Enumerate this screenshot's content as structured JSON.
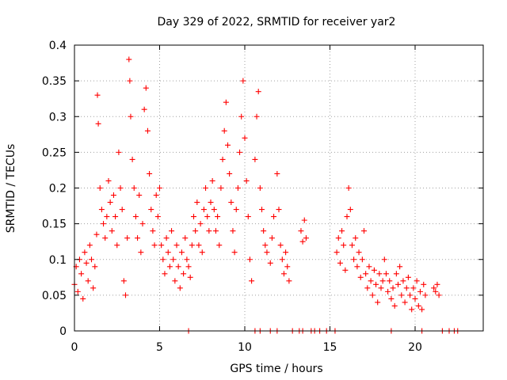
{
  "chart_data": {
    "type": "scatter",
    "title": "Day 329 of 2022, SRMTID for receiver yar2",
    "xlabel": "GPS time / hours",
    "ylabel": "SRMTID / TECUs",
    "xlim": [
      0,
      24
    ],
    "ylim": [
      0,
      0.4
    ],
    "x_ticks": [
      0,
      5,
      10,
      15,
      20
    ],
    "x_tick_labels": [
      "0",
      "5",
      "10",
      "15",
      "20"
    ],
    "y_ticks": [
      0,
      0.05,
      0.1,
      0.15,
      0.2,
      0.25,
      0.3,
      0.35,
      0.4
    ],
    "y_tick_labels": [
      "0",
      "0.05",
      "0.1",
      "0.15",
      "0.2",
      "0.25",
      "0.3",
      "0.35",
      "0.4"
    ],
    "grid": true,
    "marker": "+",
    "color": "#ff0000",
    "series": [
      {
        "name": "SRMTID",
        "points": [
          [
            0.0,
            0.065
          ],
          [
            0.1,
            0.09
          ],
          [
            0.2,
            0.055
          ],
          [
            0.3,
            0.1
          ],
          [
            0.4,
            0.08
          ],
          [
            0.5,
            0.045
          ],
          [
            0.6,
            0.11
          ],
          [
            0.7,
            0.095
          ],
          [
            0.8,
            0.07
          ],
          [
            0.9,
            0.12
          ],
          [
            1.0,
            0.1
          ],
          [
            1.1,
            0.06
          ],
          [
            1.2,
            0.09
          ],
          [
            1.3,
            0.135
          ],
          [
            1.35,
            0.33
          ],
          [
            1.4,
            0.29
          ],
          [
            1.5,
            0.2
          ],
          [
            1.6,
            0.17
          ],
          [
            1.7,
            0.15
          ],
          [
            1.8,
            0.13
          ],
          [
            1.9,
            0.16
          ],
          [
            2.0,
            0.21
          ],
          [
            2.1,
            0.18
          ],
          [
            2.2,
            0.14
          ],
          [
            2.3,
            0.19
          ],
          [
            2.4,
            0.16
          ],
          [
            2.5,
            0.12
          ],
          [
            2.6,
            0.25
          ],
          [
            2.7,
            0.2
          ],
          [
            2.8,
            0.17
          ],
          [
            2.9,
            0.07
          ],
          [
            3.0,
            0.05
          ],
          [
            3.1,
            0.13
          ],
          [
            3.2,
            0.38
          ],
          [
            3.25,
            0.35
          ],
          [
            3.3,
            0.3
          ],
          [
            3.4,
            0.24
          ],
          [
            3.5,
            0.2
          ],
          [
            3.6,
            0.16
          ],
          [
            3.7,
            0.13
          ],
          [
            3.8,
            0.19
          ],
          [
            3.9,
            0.11
          ],
          [
            4.0,
            0.15
          ],
          [
            4.1,
            0.31
          ],
          [
            4.2,
            0.34
          ],
          [
            4.3,
            0.28
          ],
          [
            4.4,
            0.22
          ],
          [
            4.5,
            0.17
          ],
          [
            4.6,
            0.14
          ],
          [
            4.7,
            0.12
          ],
          [
            4.8,
            0.19
          ],
          [
            4.9,
            0.16
          ],
          [
            5.0,
            0.2
          ],
          [
            5.1,
            0.12
          ],
          [
            5.2,
            0.1
          ],
          [
            5.3,
            0.08
          ],
          [
            5.4,
            0.13
          ],
          [
            5.5,
            0.11
          ],
          [
            5.6,
            0.09
          ],
          [
            5.7,
            0.14
          ],
          [
            5.8,
            0.1
          ],
          [
            5.9,
            0.07
          ],
          [
            6.0,
            0.12
          ],
          [
            6.1,
            0.09
          ],
          [
            6.2,
            0.06
          ],
          [
            6.3,
            0.11
          ],
          [
            6.4,
            0.08
          ],
          [
            6.5,
            0.13
          ],
          [
            6.6,
            0.1
          ],
          [
            6.7,
            0.09
          ],
          [
            6.8,
            0.075
          ],
          [
            6.9,
            0.12
          ],
          [
            7.0,
            0.16
          ],
          [
            7.1,
            0.14
          ],
          [
            7.2,
            0.18
          ],
          [
            7.3,
            0.12
          ],
          [
            7.4,
            0.15
          ],
          [
            7.5,
            0.11
          ],
          [
            7.6,
            0.17
          ],
          [
            7.7,
            0.2
          ],
          [
            7.8,
            0.16
          ],
          [
            7.9,
            0.14
          ],
          [
            8.0,
            0.18
          ],
          [
            8.1,
            0.21
          ],
          [
            8.2,
            0.17
          ],
          [
            8.3,
            0.14
          ],
          [
            8.4,
            0.16
          ],
          [
            8.5,
            0.12
          ],
          [
            8.6,
            0.2
          ],
          [
            8.7,
            0.24
          ],
          [
            8.8,
            0.28
          ],
          [
            8.9,
            0.32
          ],
          [
            9.0,
            0.26
          ],
          [
            9.1,
            0.22
          ],
          [
            9.2,
            0.18
          ],
          [
            9.3,
            0.14
          ],
          [
            9.4,
            0.11
          ],
          [
            9.5,
            0.17
          ],
          [
            9.6,
            0.2
          ],
          [
            9.7,
            0.25
          ],
          [
            9.8,
            0.3
          ],
          [
            9.9,
            0.35
          ],
          [
            10.0,
            0.27
          ],
          [
            10.1,
            0.21
          ],
          [
            10.2,
            0.16
          ],
          [
            10.3,
            0.1
          ],
          [
            10.4,
            0.07
          ],
          [
            10.6,
            0.24
          ],
          [
            10.7,
            0.3
          ],
          [
            10.8,
            0.335
          ],
          [
            10.9,
            0.2
          ],
          [
            11.0,
            0.17
          ],
          [
            11.1,
            0.14
          ],
          [
            11.2,
            0.12
          ],
          [
            11.3,
            0.11
          ],
          [
            11.5,
            0.095
          ],
          [
            11.6,
            0.13
          ],
          [
            11.7,
            0.16
          ],
          [
            11.9,
            0.22
          ],
          [
            12.0,
            0.17
          ],
          [
            12.1,
            0.12
          ],
          [
            12.2,
            0.1
          ],
          [
            12.3,
            0.08
          ],
          [
            12.4,
            0.11
          ],
          [
            12.5,
            0.09
          ],
          [
            12.6,
            0.07
          ],
          [
            13.3,
            0.14
          ],
          [
            13.4,
            0.125
          ],
          [
            13.5,
            0.155
          ],
          [
            13.6,
            0.13
          ],
          [
            15.4,
            0.11
          ],
          [
            15.5,
            0.13
          ],
          [
            15.6,
            0.095
          ],
          [
            15.7,
            0.14
          ],
          [
            15.8,
            0.12
          ],
          [
            15.9,
            0.085
          ],
          [
            16.0,
            0.16
          ],
          [
            16.1,
            0.2
          ],
          [
            16.2,
            0.17
          ],
          [
            16.3,
            0.12
          ],
          [
            16.4,
            0.1
          ],
          [
            16.5,
            0.13
          ],
          [
            16.6,
            0.09
          ],
          [
            16.7,
            0.11
          ],
          [
            16.8,
            0.075
          ],
          [
            16.9,
            0.1
          ],
          [
            17.0,
            0.14
          ],
          [
            17.1,
            0.08
          ],
          [
            17.2,
            0.06
          ],
          [
            17.3,
            0.09
          ],
          [
            17.4,
            0.07
          ],
          [
            17.5,
            0.05
          ],
          [
            17.6,
            0.085
          ],
          [
            17.7,
            0.065
          ],
          [
            17.8,
            0.04
          ],
          [
            17.9,
            0.08
          ],
          [
            18.0,
            0.06
          ],
          [
            18.1,
            0.07
          ],
          [
            18.2,
            0.1
          ],
          [
            18.3,
            0.08
          ],
          [
            18.4,
            0.055
          ],
          [
            18.5,
            0.07
          ],
          [
            18.6,
            0.045
          ],
          [
            18.7,
            0.06
          ],
          [
            18.8,
            0.035
          ],
          [
            18.9,
            0.08
          ],
          [
            19.0,
            0.065
          ],
          [
            19.1,
            0.09
          ],
          [
            19.2,
            0.05
          ],
          [
            19.3,
            0.07
          ],
          [
            19.4,
            0.04
          ],
          [
            19.5,
            0.06
          ],
          [
            19.6,
            0.075
          ],
          [
            19.7,
            0.05
          ],
          [
            19.8,
            0.03
          ],
          [
            19.9,
            0.06
          ],
          [
            20.0,
            0.045
          ],
          [
            20.1,
            0.07
          ],
          [
            20.2,
            0.035
          ],
          [
            20.3,
            0.055
          ],
          [
            20.4,
            0.03
          ],
          [
            20.5,
            0.065
          ],
          [
            20.6,
            0.05
          ],
          [
            21.1,
            0.06
          ],
          [
            21.2,
            0.055
          ],
          [
            21.3,
            0.065
          ],
          [
            21.4,
            0.05
          ],
          [
            6.7,
            0.0
          ],
          [
            10.6,
            0.0
          ],
          [
            10.9,
            0.0
          ],
          [
            11.5,
            0.0
          ],
          [
            11.9,
            0.0
          ],
          [
            12.8,
            0.0
          ],
          [
            13.2,
            0.0
          ],
          [
            13.4,
            0.0
          ],
          [
            13.9,
            0.0
          ],
          [
            14.1,
            0.0
          ],
          [
            14.4,
            0.0
          ],
          [
            14.8,
            0.0
          ],
          [
            15.3,
            0.0
          ],
          [
            18.6,
            0.0
          ],
          [
            20.4,
            0.0
          ],
          [
            21.6,
            0.0
          ],
          [
            22.0,
            0.0
          ],
          [
            22.3,
            0.0
          ],
          [
            22.5,
            0.0
          ]
        ]
      }
    ]
  }
}
